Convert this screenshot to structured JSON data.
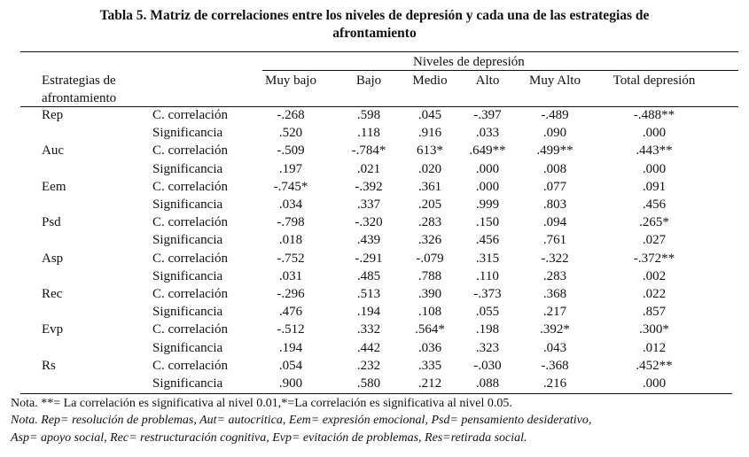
{
  "title_line1": "Tabla 5. Matriz de correlaciones entre los niveles de depresión y cada una de las estrategias de",
  "title_line2": "afrontamiento",
  "group_header": "Niveles de depresión",
  "row_header_line1": "Estrategias de",
  "row_header_line2": "afrontamiento",
  "columns": [
    "Muy bajo",
    "Bajo",
    "Medio",
    "Alto",
    "Muy Alto",
    "Total depresión"
  ],
  "rows": [
    {
      "strategy": "Rep",
      "stat": "C. correlación",
      "values": [
        "-.268",
        ".598",
        ".045",
        "-.397",
        "-.489",
        "-.488**"
      ]
    },
    {
      "strategy": "",
      "stat": "Significancia",
      "values": [
        ".520",
        ".118",
        ".916",
        ".033",
        ".090",
        ".000"
      ]
    },
    {
      "strategy": "Auc",
      "stat": "C. correlación",
      "values": [
        "-.509",
        "-.784*",
        "613*",
        ".649**",
        ".499**",
        ".443**"
      ]
    },
    {
      "strategy": "",
      "stat": "Significancia",
      "values": [
        ".197",
        ".021",
        ".020",
        ".000",
        ".008",
        ".000"
      ]
    },
    {
      "strategy": "Eem",
      "stat": "C. correlación",
      "values": [
        "-.745*",
        "-.392",
        ".361",
        ".000",
        ".077",
        ".091"
      ]
    },
    {
      "strategy": "",
      "stat": "Significancia",
      "values": [
        ".034",
        ".337",
        ".205",
        ".999",
        ".803",
        ".456"
      ]
    },
    {
      "strategy": "Psd",
      "stat": "C. correlación",
      "values": [
        "-.798",
        "-.320",
        ".283",
        ".150",
        ".094",
        ".265*"
      ]
    },
    {
      "strategy": "",
      "stat": "Significancia",
      "values": [
        ".018",
        ".439",
        ".326",
        ".456",
        ".761",
        ".027"
      ]
    },
    {
      "strategy": "Asp",
      "stat": "C. correlación",
      "values": [
        "-.752",
        "-.291",
        "-.079",
        ".315",
        "-.322",
        "-.372**"
      ]
    },
    {
      "strategy": "",
      "stat": "Significancia",
      "values": [
        ".031",
        ".485",
        ".788",
        ".110",
        ".283",
        ".002"
      ]
    },
    {
      "strategy": "Rec",
      "stat": "C. correlación",
      "values": [
        "-.296",
        ".513",
        ".390",
        "-.373",
        ".368",
        ".022"
      ]
    },
    {
      "strategy": "",
      "stat": "Significancia",
      "values": [
        ".476",
        ".194",
        ".108",
        ".055",
        ".217",
        ".857"
      ]
    },
    {
      "strategy": "Evp",
      "stat": "C. correlación",
      "values": [
        "-.512",
        ".332",
        ".564*",
        ".198",
        ".392*",
        ".300*"
      ]
    },
    {
      "strategy": "",
      "stat": "Significancia",
      "values": [
        ".194",
        ".442",
        ".036",
        ".323",
        ".043",
        ".012"
      ]
    },
    {
      "strategy": "Rs",
      "stat": "C. correlación",
      "values": [
        ".054",
        ".232",
        ".335",
        "-.030",
        "-.368",
        ".452**"
      ]
    },
    {
      "strategy": "",
      "stat": "Significancia",
      "values": [
        ".900",
        ".580",
        ".212",
        ".088",
        ".216",
        ".000"
      ]
    }
  ],
  "note1": "Nota. **= La correlación es significativa al nivel 0.01,*=La correlación es significativa al nivel 0.05.",
  "note2": "Nota. Rep= resolución de problemas, Aut= autocritica, Eem= expresión emocional, Psd= pensamiento desiderativo,",
  "note3": "Asp= apoyo social, Rec= restructuración cognitiva, Evp= evitación de problemas, Res=retirada social."
}
